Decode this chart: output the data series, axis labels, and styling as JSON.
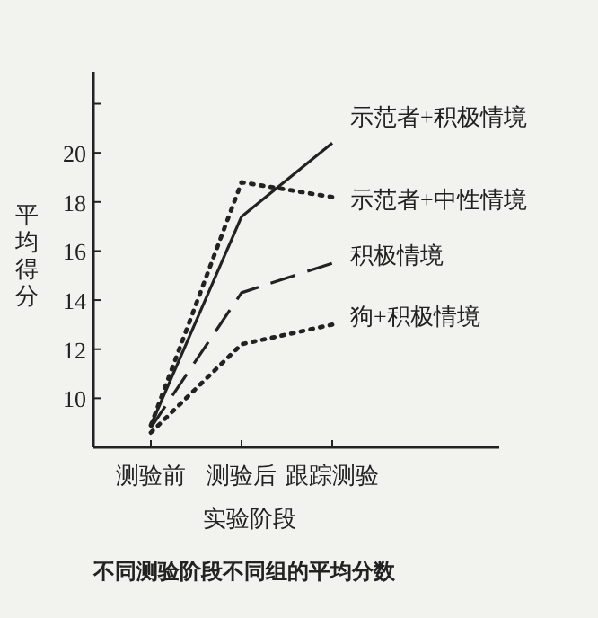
{
  "chart_data": {
    "type": "line",
    "xlabel": "实验阶段",
    "ylabel": "平均得分",
    "annotations": [
      "不同测验阶段不同组的平均分数"
    ],
    "categories": [
      "测验前",
      "测验后",
      "跟踪测验"
    ],
    "ylim": [
      8,
      23.3
    ],
    "yticks": [
      10,
      12,
      14,
      16,
      18,
      20,
      {
        "value": 22,
        "label": null
      }
    ],
    "grid": false,
    "legend": false,
    "series": [
      {
        "name": "示范者+积极情境",
        "color": "#222222",
        "line_style": "solid",
        "values": [
          8.9,
          17.4,
          20.4
        ]
      },
      {
        "name": "示范者+中性情境",
        "color": "#222222",
        "line_style": "dotted",
        "values": [
          8.9,
          18.8,
          18.2
        ]
      },
      {
        "name": "积极情境",
        "color": "#222222",
        "line_style": "dashed",
        "values": [
          8.8,
          14.3,
          15.5
        ]
      },
      {
        "name": "狗+积极情境",
        "color": "#222222",
        "line_style": "dotted",
        "values": [
          8.6,
          12.2,
          13.0
        ]
      }
    ]
  }
}
